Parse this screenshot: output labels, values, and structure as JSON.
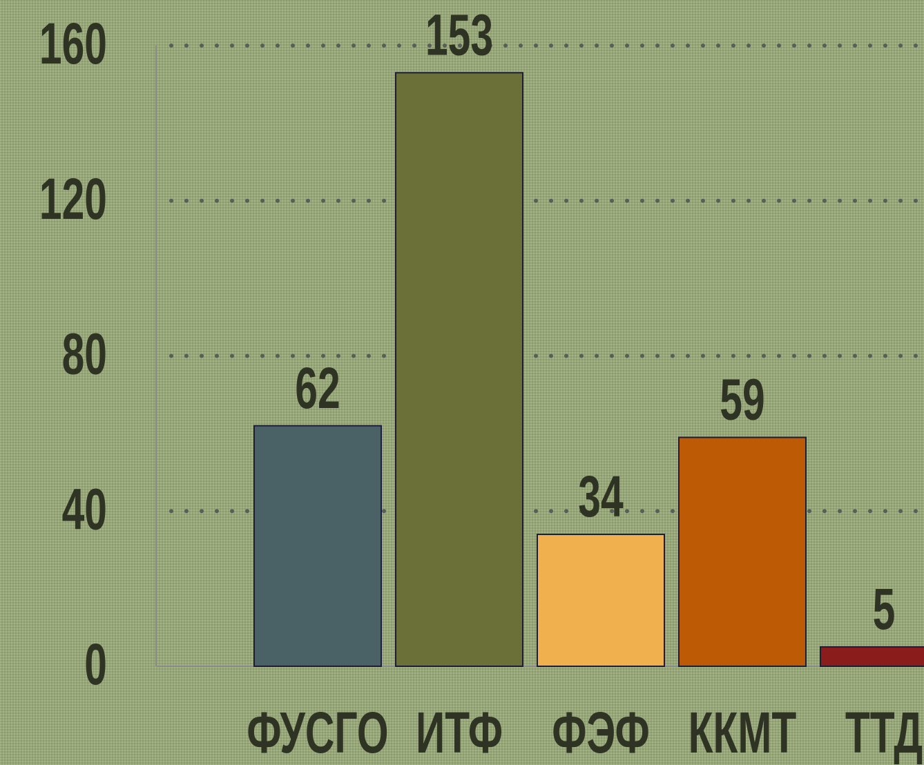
{
  "chart_data": {
    "type": "bar",
    "categories": [
      "ФУСГО",
      "ИТФ",
      "ФЭФ",
      "ККМТ",
      "ТТД"
    ],
    "values": [
      62,
      153,
      34,
      59,
      5
    ],
    "colors": [
      "#4a6166",
      "#6b7039",
      "#f0b04e",
      "#bd5a06",
      "#8b1c1c"
    ],
    "ylim": [
      0,
      160
    ],
    "yticks": [
      0,
      40,
      80,
      120,
      160
    ],
    "grid": true
  }
}
